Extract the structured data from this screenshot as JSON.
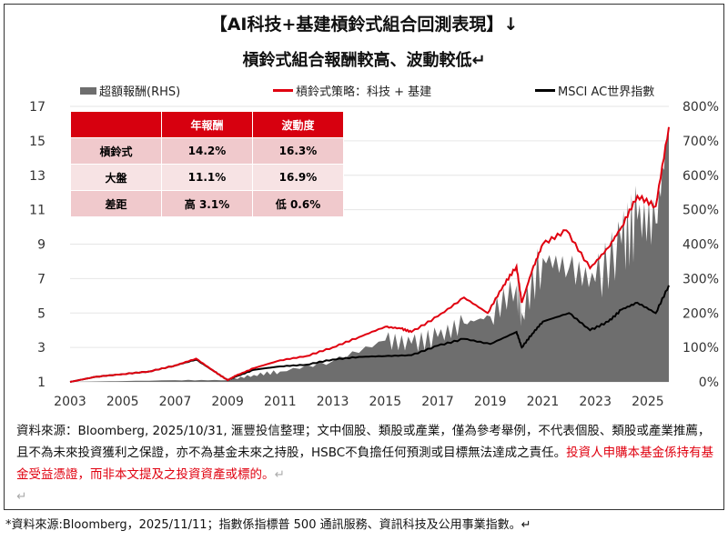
{
  "title": "【AI科技+基建槓鈴式組合回測表現】↓",
  "subtitle": "槓鈴式組合報酬較高、波動較低↵",
  "table": {
    "headers": [
      "",
      "年報酬",
      "波動度"
    ],
    "rows": [
      [
        "槓鈴式",
        "14.2%",
        "16.3%"
      ],
      [
        "大盤",
        "11.1%",
        "16.9%"
      ],
      [
        "差距",
        "高 3.1%",
        "低 0.6%"
      ]
    ]
  },
  "note_black": "資料來源：Bloomberg, 2025/10/31, 滙豐投信整理；文中個股、類股或產業，僅為參考舉例，不代表個股、類股或產業推薦，且不為未來投資獲利之保證，亦不為基金未來之持股，HSBC不負擔任何預測或目標無法達成之責任。",
  "note_red": "投資人申購本基金係持有基金受益憑證，而非本文提及之投資資產或標的。",
  "note_mark": "↵",
  "note_mark2": "↵",
  "footnote": "*資料來源:Bloomberg，2025/11/11；指數係指標普 500 通訊服務、資訊科技及公用事業指數。↵",
  "chart_data": {
    "type": "line",
    "legend": [
      "超額報酬(RHS)",
      "槓鈴式策略：科技 + 基建",
      "MSCI AC世界指數"
    ],
    "colors": {
      "excess": "#6e6e6e",
      "strategy": "#e0000f",
      "msci": "#000000"
    },
    "x_ticks": [
      "2003",
      "2005",
      "2007",
      "2009",
      "2011",
      "2013",
      "2015",
      "2017",
      "2019",
      "2021",
      "2023",
      "2025"
    ],
    "y_left_ticks": [
      "1",
      "3",
      "5",
      "7",
      "9",
      "11",
      "13",
      "15",
      "17"
    ],
    "y_right_ticks": [
      "0%",
      "100%",
      "200%",
      "300%",
      "400%",
      "500%",
      "600%",
      "700%",
      "800%"
    ],
    "xlim": [
      2003,
      2025.8
    ],
    "ylim_left": [
      1,
      17
    ],
    "ylim_right": [
      0,
      800
    ],
    "series": [
      {
        "name": "槓鈴式策略：科技 + 基建",
        "axis": "left",
        "x": [
          2003,
          2004,
          2005,
          2006,
          2007,
          2007.8,
          2008.5,
          2009.0,
          2009.3,
          2010,
          2011,
          2012,
          2013,
          2014,
          2015,
          2015.6,
          2016,
          2017,
          2018,
          2018.9,
          2019.5,
          2020.0,
          2020.2,
          2020.6,
          2021,
          2021.9,
          2022.8,
          2023.5,
          2024,
          2024.6,
          2025.3,
          2025.8
        ],
        "y": [
          1,
          1.3,
          1.45,
          1.6,
          1.95,
          2.35,
          1.6,
          1.1,
          1.35,
          1.8,
          2.25,
          2.5,
          3.0,
          3.6,
          4.2,
          4.1,
          3.9,
          4.8,
          5.9,
          5.0,
          6.6,
          7.7,
          5.6,
          7.5,
          9.0,
          9.8,
          7.6,
          8.8,
          10.0,
          11.8,
          11.2,
          15.8
        ]
      },
      {
        "name": "MSCI AC世界指數",
        "axis": "left",
        "x": [
          2003,
          2004,
          2005,
          2006,
          2007,
          2007.8,
          2008.5,
          2009.0,
          2009.3,
          2010,
          2011,
          2012,
          2013,
          2014,
          2015,
          2016,
          2017,
          2018,
          2019,
          2020.0,
          2020.2,
          2020.6,
          2021,
          2022,
          2022.8,
          2023.5,
          2024,
          2024.6,
          2025.3,
          2025.8
        ],
        "y": [
          1,
          1.3,
          1.45,
          1.6,
          1.95,
          2.3,
          1.6,
          1.1,
          1.3,
          1.7,
          1.9,
          2.0,
          2.3,
          2.45,
          2.5,
          2.55,
          3.1,
          3.5,
          3.2,
          3.9,
          3.0,
          3.8,
          4.5,
          5.0,
          4.0,
          4.5,
          5.2,
          5.6,
          5.0,
          6.6
        ]
      },
      {
        "name": "超額報酬(RHS)",
        "axis": "right",
        "type": "area",
        "x": [
          2003,
          2007,
          2009,
          2010,
          2011,
          2013,
          2015,
          2016,
          2017,
          2018,
          2019,
          2020,
          2020.2,
          2021,
          2022,
          2023,
          2024,
          2024.6,
          2025.3,
          2025.8
        ],
        "y": [
          0,
          5,
          5,
          20,
          30,
          60,
          120,
          110,
          130,
          170,
          190,
          280,
          200,
          360,
          330,
          290,
          400,
          470,
          460,
          740
        ]
      }
    ]
  }
}
